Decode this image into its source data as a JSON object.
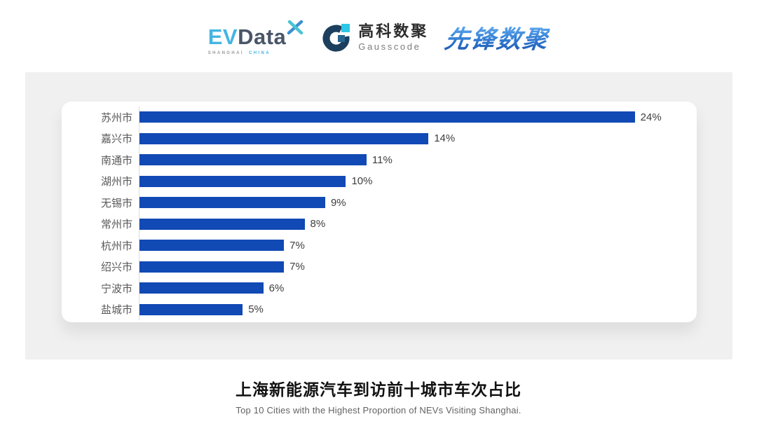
{
  "header": {
    "evdata": {
      "ev": "EV",
      "data": "Data",
      "sub_left": "SHANGHAI",
      "sub_right": "CHINA"
    },
    "gausscode": {
      "name_cn": "高科数聚",
      "name_en": "Gausscode"
    },
    "pioneer": {
      "name": "先锋数聚"
    }
  },
  "chart_data": {
    "type": "bar",
    "orientation": "horizontal",
    "title": "上海新能源汽车到访前十城市车次占比",
    "subtitle": "Top 10 Cities with the Highest Proportion of  NEVs Visiting Shanghai.",
    "categories": [
      "苏州市",
      "嘉兴市",
      "南通市",
      "湖州市",
      "无锡市",
      "常州市",
      "杭州市",
      "绍兴市",
      "宁波市",
      "盐城市"
    ],
    "values": [
      24,
      14,
      11,
      10,
      9,
      8,
      7,
      7,
      6,
      5
    ],
    "value_labels": [
      "24%",
      "14%",
      "11%",
      "10%",
      "9%",
      "8%",
      "7%",
      "7%",
      "6%",
      "5%"
    ],
    "xlim": [
      0,
      27
    ],
    "grid": false,
    "legend": false,
    "bar_color": "#1149b5",
    "category_label_color": "#595959",
    "value_label_color": "#3e3e3e",
    "axis_line_color": "#dcdcdc"
  },
  "caption": {
    "title": "上海新能源汽车到访前十城市车次占比",
    "subtitle": "Top 10 Cities with the Highest Proportion of  NEVs Visiting Shanghai."
  },
  "colors": {
    "panel_bg": "#f0f0f1",
    "card_bg": "#ffffff",
    "evdata_cyan": "#45b5e2",
    "evdata_dark": "#4a5668",
    "gauss_navy": "#1c3f5e",
    "gauss_cyan": "#2ec6e6",
    "gauss_mid_blue": "#27648f",
    "pioneer_gradient_top": "#5ea9ee",
    "pioneer_gradient_bottom": "#1c55ae"
  }
}
